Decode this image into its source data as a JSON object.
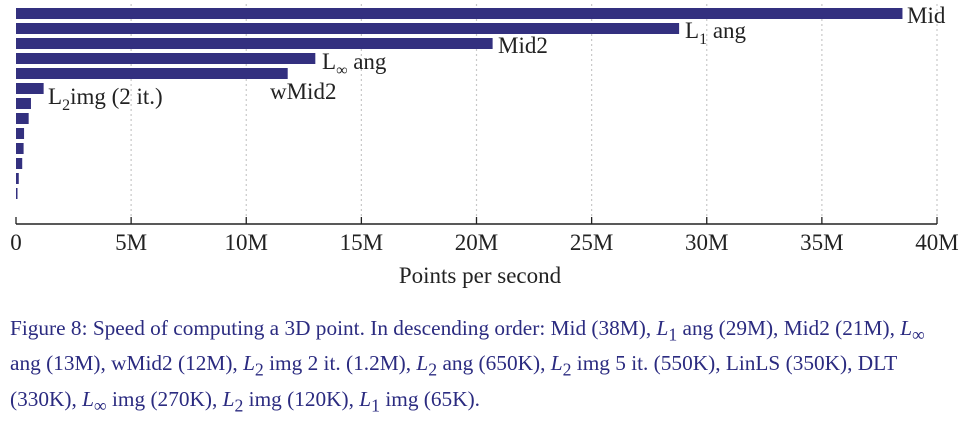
{
  "chart_data": {
    "type": "bar",
    "orientation": "horizontal",
    "xlabel": "Points per second",
    "xlim": [
      0,
      40000000
    ],
    "ticks": [
      0,
      5000000,
      10000000,
      15000000,
      20000000,
      25000000,
      30000000,
      35000000,
      40000000
    ],
    "tick_labels": [
      "0",
      "5M",
      "10M",
      "15M",
      "20M",
      "25M",
      "30M",
      "35M",
      "40M"
    ],
    "grid": "vertical dotted",
    "bar_color": "#33307f",
    "bars": [
      {
        "value": 38500000,
        "label": "Mid"
      },
      {
        "value": 28800000,
        "label": "L1 ang",
        "label_main": "L",
        "label_sub": "1",
        "label_rest": " ang"
      },
      {
        "value": 20700000,
        "label": "Mid2"
      },
      {
        "value": 13000000,
        "label": "L∞ ang",
        "label_main": "L",
        "label_sub": "∞",
        "label_rest": " ang"
      },
      {
        "value": 11800000,
        "label": "wMid2"
      },
      {
        "value": 1200000,
        "label": "L2 img (2 it.)",
        "label_main": "L",
        "label_sub": "2",
        "label_rest": "img (2 it.)"
      },
      {
        "value": 650000
      },
      {
        "value": 550000
      },
      {
        "value": 350000
      },
      {
        "value": 330000
      },
      {
        "value": 270000
      },
      {
        "value": 120000
      },
      {
        "value": 65000
      }
    ]
  },
  "caption": {
    "p1": "Figure 8:  Speed of computing a 3D point. In descending order: Mid (38M), ",
    "l1ang": "L",
    "l1ang_sub": "1",
    "p2": " ang (29M), Mid2 (21M), ",
    "linfang": "L",
    "linfang_sub": "∞",
    "p3": " ang (13M), wMid2 (12M), ",
    "l2img": "L",
    "l2img_sub": "2",
    "p4": " img 2 it. (1.2M), ",
    "l2ang": "L",
    "l2ang_sub": "2",
    "p5": " ang (650K), ",
    "l2img5": "L",
    "l2img5_sub": "2",
    "p6": " img 5 it. (550K), LinLS (350K), DLT (330K), ",
    "linfimg": "L",
    "linfimg_sub": "∞",
    "p7": " img (270K), ",
    "l2img_b": "L",
    "l2img_b_sub": "2",
    "p8": " img (120K), ",
    "l1img": "L",
    "l1img_sub": "1",
    "p9": " img (65K)."
  }
}
